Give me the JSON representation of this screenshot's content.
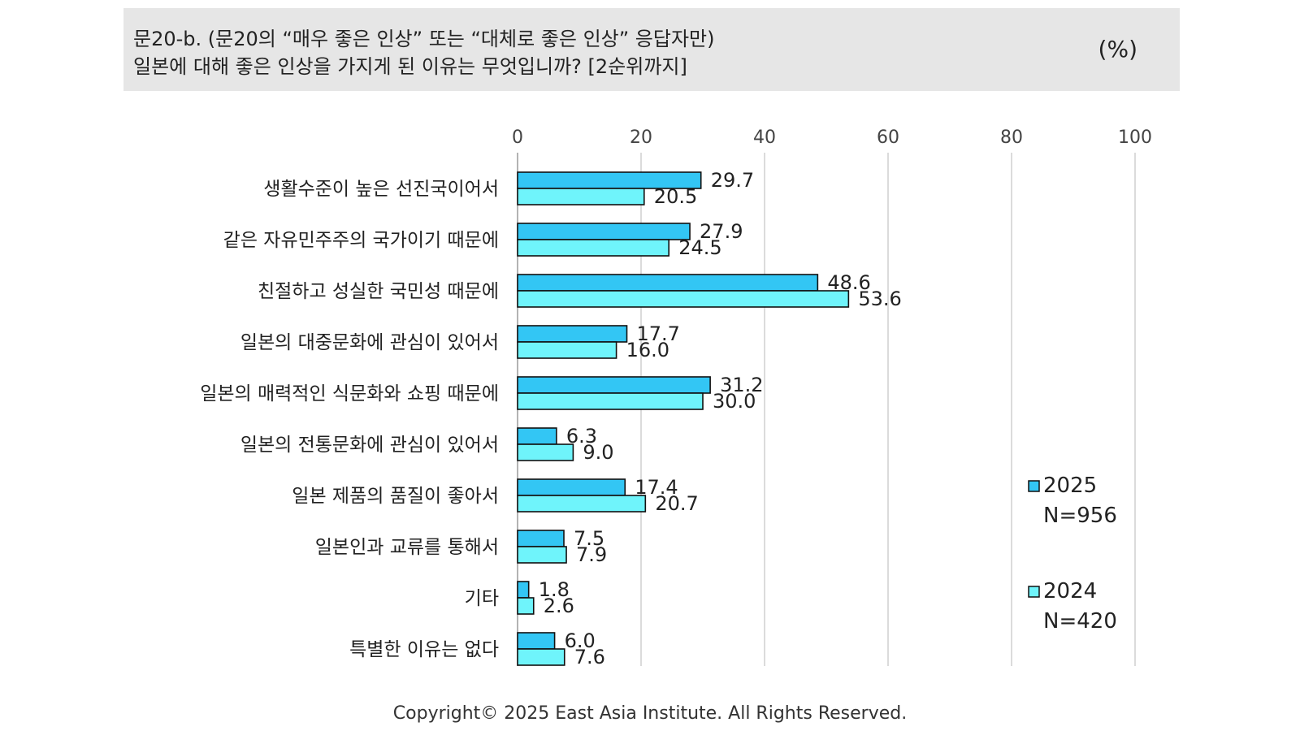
{
  "question": {
    "line1": "문20-b. (문20의 “매우 좋은 인상” 또는 “대체로 좋은 인상” 응답자만)",
    "line2": "일본에 대해 좋은 인상을 가지게 된 이유는 무엇입니까? [2순위까지]",
    "unit": "(%)"
  },
  "chart_data": {
    "type": "bar",
    "orientation": "horizontal",
    "xlim": [
      0,
      100
    ],
    "ticks": [
      0,
      20,
      40,
      60,
      80,
      100
    ],
    "grid": true,
    "legend_position": "right",
    "categories": [
      "생활수준이 높은 선진국이어서",
      "같은 자유민주주의 국가이기 때문에",
      "친절하고 성실한 국민성 때문에",
      "일본의 대중문화에 관심이 있어서",
      "일본의 매력적인 식문화와 쇼핑 때문에",
      "일본의 전통문화에 관심이 있어서",
      "일본 제품의 품질이 좋아서",
      "일본인과 교류를 통해서",
      "기타",
      "특별한 이유는 없다"
    ],
    "series": [
      {
        "name": "2025",
        "n_label": "N=956",
        "color": "#33c6f4",
        "values": [
          29.7,
          27.9,
          48.6,
          17.7,
          31.2,
          6.3,
          17.4,
          7.5,
          1.8,
          6.0
        ],
        "labels": [
          "29.7",
          "27.9",
          "48.6",
          "17.7",
          "31.2",
          "6.3",
          "17.4",
          "7.5",
          "1.8",
          "6.0"
        ]
      },
      {
        "name": "2024",
        "n_label": "N=420",
        "color": "#6ff4fb",
        "values": [
          20.5,
          24.5,
          53.6,
          16.0,
          30.0,
          9.0,
          20.7,
          7.9,
          2.6,
          7.6
        ],
        "labels": [
          "20.5",
          "24.5",
          "53.6",
          "16.0",
          "30.0",
          "9.0",
          "20.7",
          "7.9",
          "2.6",
          "7.6"
        ]
      }
    ]
  },
  "footer": "Copyright© 2025 East Asia Institute. All Rights Reserved."
}
